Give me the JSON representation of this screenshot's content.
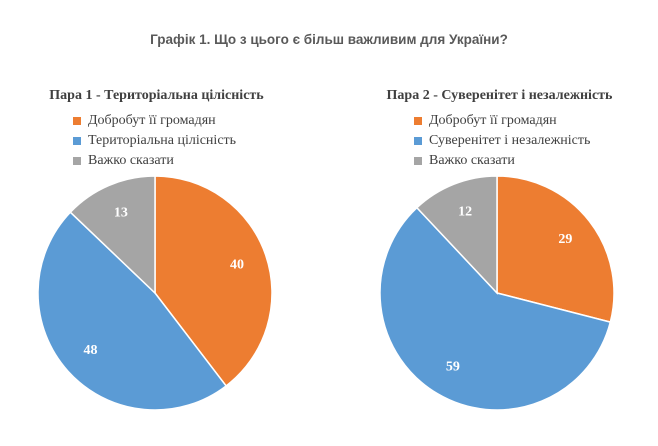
{
  "figure_title": "Графік 1. Що з цього є більш важливим для України?",
  "chart_data": [
    {
      "type": "pie",
      "title": "Пара 1 - Територіальна цілісність",
      "legend_position": "top",
      "categories": [
        "Добробут її громадян",
        "Територіальна цілісність",
        "Важко сказати"
      ],
      "values": [
        40,
        48,
        13
      ],
      "colors": [
        "#ED7D31",
        "#5B9BD5",
        "#A5A5A5"
      ]
    },
    {
      "type": "pie",
      "title": "Пара 2 - Суверенітет і незалежність",
      "legend_position": "top",
      "categories": [
        "Добробут її громадян",
        "Суверенітет і незалежність",
        "Важко сказати"
      ],
      "values": [
        29,
        59,
        12
      ],
      "colors": [
        "#ED7D31",
        "#5B9BD5",
        "#A5A5A5"
      ]
    }
  ]
}
